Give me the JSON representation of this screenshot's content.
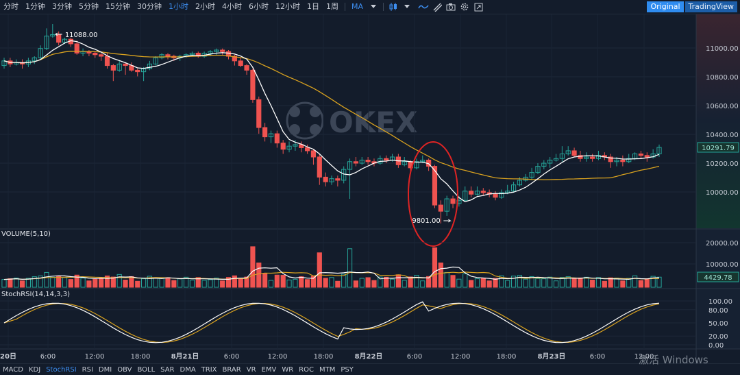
{
  "toolbar": {
    "intervals": [
      "分时",
      "1分钟",
      "3分钟",
      "5分钟",
      "15分钟",
      "30分钟",
      "1小时",
      "2小时",
      "4小时",
      "6小时",
      "12小时",
      "1日",
      "1周"
    ],
    "active_interval": "1小时",
    "indicator_button": "MA",
    "original_label": "Original",
    "tradingview_label": "TradingView"
  },
  "chart": {
    "watermark": "OKEX",
    "price_axis": [
      "11000.00",
      "10800.00",
      "10600.00",
      "10400.00",
      "10200.00",
      "10000.00"
    ],
    "current_price": "10291.79",
    "high_label": "11088.00",
    "low_label": "9801.00",
    "volume_title": "VOLUME(5,10)",
    "volume_axis": [
      "20000.00",
      "10000.00"
    ],
    "current_volume": "4429.78",
    "stoch_title": "StochRSI(14,14,3,3)",
    "stoch_axis": [
      "100.00",
      "80.00",
      "50.00",
      "20.00",
      "0.00"
    ],
    "time_axis": [
      "20日",
      "6:00",
      "12:00",
      "18:00",
      "8月21日",
      "6:00",
      "12:00",
      "18:00",
      "8月22日",
      "6:00",
      "12:00",
      "18:00",
      "8月23日",
      "6:00",
      "12:00"
    ],
    "colors": {
      "up": "#26a69a",
      "down": "#ef5350",
      "ma_short": "#ffffff",
      "ma_long": "#d9a21f",
      "circle": "#e02424",
      "background": "#131c2b"
    }
  },
  "indicators": [
    "MACD",
    "KDJ",
    "StochRSI",
    "RSI",
    "DMI",
    "OBV",
    "BOLL",
    "SAR",
    "DMA",
    "TRIX",
    "BRAR",
    "VR",
    "EMV",
    "WR",
    "ROC",
    "MTM",
    "PSY"
  ],
  "active_indicator": "StochRSI",
  "os_watermark": "激活 Windows"
}
